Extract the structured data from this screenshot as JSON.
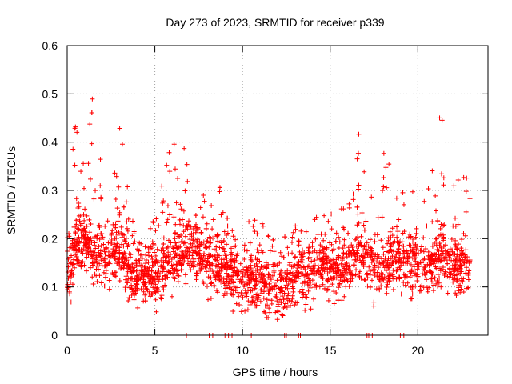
{
  "chart_data": {
    "type": "scatter",
    "title": "Day 273 of 2023, SRMTID for receiver p339",
    "xlabel": "GPS time / hours",
    "ylabel": "SRMTID / TECUs",
    "xlim": [
      0,
      24
    ],
    "ylim": [
      0,
      0.6
    ],
    "xticks": [
      0,
      5,
      10,
      15,
      20
    ],
    "xtick_labels": [
      "0",
      "5",
      "10",
      "15",
      "20"
    ],
    "yticks": [
      0,
      0.1,
      0.2,
      0.3,
      0.4,
      0.5,
      0.6
    ],
    "ytick_labels": [
      "0",
      "0.1",
      "0.2",
      "0.3",
      "0.4",
      "0.5",
      "0.6"
    ],
    "grid": true,
    "marker": "+",
    "color": "#ff0000",
    "trend": {
      "hours": [
        0,
        0.5,
        1,
        1.5,
        2,
        2.5,
        3,
        3.5,
        4,
        4.5,
        5,
        5.5,
        6,
        6.5,
        7,
        7.5,
        8,
        8.5,
        9,
        9.5,
        10,
        10.5,
        11,
        11.5,
        12,
        12.5,
        13,
        13.5,
        14,
        14.5,
        15,
        15.5,
        16,
        16.5,
        17,
        17.5,
        18,
        18.5,
        19,
        19.5,
        20,
        20.5,
        21,
        21.5,
        22,
        22.5,
        23
      ],
      "median": [
        0.13,
        0.18,
        0.2,
        0.17,
        0.16,
        0.16,
        0.18,
        0.14,
        0.12,
        0.12,
        0.12,
        0.13,
        0.16,
        0.17,
        0.18,
        0.17,
        0.15,
        0.15,
        0.14,
        0.13,
        0.12,
        0.11,
        0.11,
        0.1,
        0.09,
        0.1,
        0.12,
        0.12,
        0.13,
        0.14,
        0.14,
        0.14,
        0.15,
        0.16,
        0.16,
        0.14,
        0.14,
        0.15,
        0.15,
        0.14,
        0.14,
        0.15,
        0.14,
        0.17,
        0.15,
        0.14,
        0.15
      ],
      "upper_envelope": [
        0.3,
        0.45,
        0.38,
        0.52,
        0.35,
        0.3,
        0.48,
        0.3,
        0.22,
        0.22,
        0.25,
        0.35,
        0.4,
        0.44,
        0.4,
        0.33,
        0.3,
        0.37,
        0.28,
        0.25,
        0.35,
        0.27,
        0.26,
        0.24,
        0.2,
        0.22,
        0.24,
        0.22,
        0.24,
        0.26,
        0.28,
        0.26,
        0.3,
        0.44,
        0.38,
        0.28,
        0.4,
        0.35,
        0.38,
        0.3,
        0.3,
        0.32,
        0.48,
        0.45,
        0.32,
        0.33,
        0.33
      ]
    },
    "zero_points_hours": [
      6.8,
      8.1,
      8.3,
      9.0,
      9.2,
      9.4,
      10.5,
      12.4,
      12.5,
      13.2,
      13.3,
      17.1,
      17.2,
      17.4,
      19.0,
      19.2
    ]
  }
}
